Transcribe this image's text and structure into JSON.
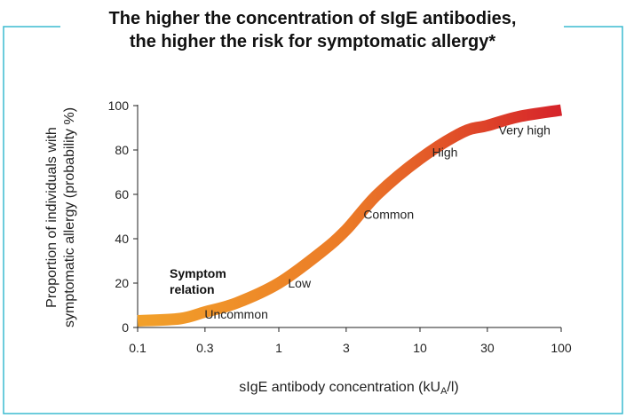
{
  "colors": {
    "frame": "#3bbcd0",
    "axis": "#222222",
    "curve_start": "#f2a12a",
    "curve_end": "#d6232a"
  },
  "chart_data": {
    "type": "line",
    "title_lines": [
      "The higher the concentration of sIgE antibodies,",
      "the higher the risk for symptomatic allergy*"
    ],
    "xlabel": "sIgE antibody concentration (kUA/l)",
    "ylabel_lines": [
      "Proportion of individuals with",
      "symptomatic allergy (probability %)"
    ],
    "x_scale": "log",
    "xlim": [
      0.1,
      100
    ],
    "ylim": [
      0,
      100
    ],
    "x_ticks": [
      0.1,
      0.3,
      1,
      3,
      10,
      30,
      100
    ],
    "x_tick_labels": [
      "0.1",
      "0.3",
      "1",
      "3",
      "10",
      "30",
      "100"
    ],
    "y_ticks": [
      0,
      20,
      40,
      60,
      80,
      100
    ],
    "y_tick_labels": [
      "0",
      "20",
      "40",
      "60",
      "80",
      "100"
    ],
    "grid": false,
    "series": [
      {
        "name_lines": [
          "Symptom",
          "relation"
        ],
        "x": [
          0.1,
          0.2,
          0.3,
          0.5,
          1,
          2,
          3,
          5,
          10,
          20,
          30,
          50,
          100
        ],
        "y": [
          3,
          4,
          7,
          11,
          20,
          34,
          44,
          60,
          76,
          88,
          91,
          95,
          98
        ]
      }
    ],
    "annotations": [
      {
        "text": "Uncommon",
        "x": 0.5,
        "y": 4
      },
      {
        "text": "Low",
        "x": 1.4,
        "y": 18
      },
      {
        "text": "Common",
        "x": 6,
        "y": 49
      },
      {
        "text": "High",
        "x": 15,
        "y": 77
      },
      {
        "text": "Very high",
        "x": 55,
        "y": 87
      }
    ]
  }
}
